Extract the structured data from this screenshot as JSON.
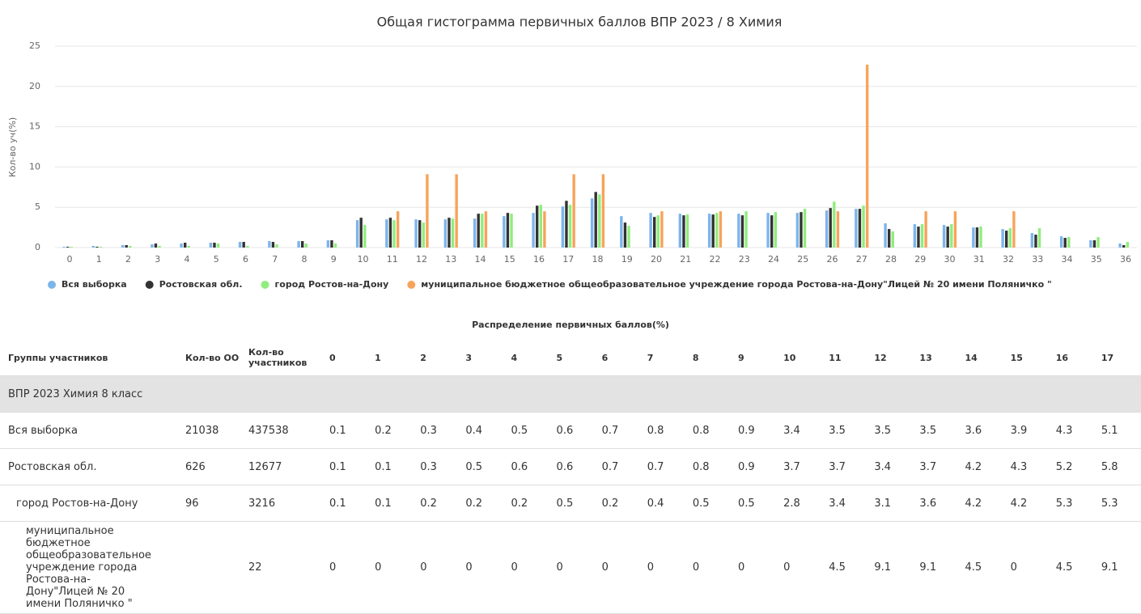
{
  "chart_data": {
    "type": "bar",
    "title": "Общая гистограмма первичных баллов ВПР 2023 / 8 Химия",
    "y_label": "Кол-во уч(%)",
    "categories": [
      0,
      1,
      2,
      3,
      4,
      5,
      6,
      7,
      8,
      9,
      10,
      11,
      12,
      13,
      14,
      15,
      16,
      17,
      18,
      19,
      20,
      21,
      22,
      23,
      24,
      25,
      26,
      27,
      28,
      29,
      30,
      31,
      32,
      33,
      34,
      35,
      36
    ],
    "series": [
      {
        "name": "Вся выборка",
        "color": "#7cb5ec",
        "values": [
          0.1,
          0.2,
          0.3,
          0.4,
          0.5,
          0.6,
          0.7,
          0.8,
          0.8,
          0.9,
          3.4,
          3.5,
          3.5,
          3.5,
          3.6,
          3.9,
          4.3,
          5.1,
          6.1,
          3.9,
          4.3,
          4.2,
          4.2,
          4.2,
          4.3,
          4.3,
          4.6,
          4.8,
          3.0,
          2.9,
          2.8,
          2.5,
          2.3,
          1.8,
          1.4,
          0.9,
          0.5
        ]
      },
      {
        "name": "Ростовская обл.",
        "color": "#333333",
        "values": [
          0.1,
          0.1,
          0.3,
          0.5,
          0.6,
          0.6,
          0.7,
          0.7,
          0.8,
          0.9,
          3.7,
          3.7,
          3.4,
          3.7,
          4.2,
          4.3,
          5.2,
          5.8,
          6.9,
          3.1,
          3.8,
          4.0,
          4.1,
          4.0,
          4.0,
          4.4,
          4.9,
          4.8,
          2.3,
          2.6,
          2.6,
          2.5,
          2.1,
          1.6,
          1.2,
          0.9,
          0.3
        ]
      },
      {
        "name": "город Ростов-на-Дону",
        "color": "#90ed7d",
        "values": [
          0.1,
          0.1,
          0.2,
          0.2,
          0.2,
          0.5,
          0.2,
          0.4,
          0.5,
          0.5,
          2.8,
          3.4,
          3.1,
          3.6,
          4.2,
          4.2,
          5.3,
          5.3,
          6.6,
          2.7,
          4.0,
          4.1,
          4.3,
          4.5,
          4.4,
          4.8,
          5.7,
          5.2,
          2.0,
          2.9,
          2.9,
          2.6,
          2.4,
          2.4,
          1.3,
          1.3,
          0.7
        ]
      },
      {
        "name": "муниципальное бюджетное общеобразовательное учреждение города Ростова-на-Дону\"Лицей № 20 имени Поляничко \"",
        "color": "#f7a35c",
        "values": [
          0,
          0,
          0,
          0,
          0,
          0,
          0,
          0,
          0,
          0,
          0,
          4.5,
          9.1,
          9.1,
          4.5,
          0,
          4.5,
          9.1,
          9.1,
          0,
          4.5,
          0,
          4.5,
          0,
          0,
          0,
          4.5,
          22.7,
          0,
          4.5,
          4.5,
          0,
          4.5,
          0,
          0,
          0,
          0
        ]
      }
    ],
    "ylim": [
      0,
      25
    ],
    "yticks": [
      0,
      5,
      10,
      15,
      20,
      25
    ],
    "grid": true,
    "legend": "bottom"
  },
  "table": {
    "caption": "Распределение первичных баллов(%)",
    "headers": [
      "Группы участников",
      "Кол-во ОО",
      "Кол-во участников"
    ],
    "section": "ВПР 2023 Химия 8 класс",
    "columns": 18,
    "rows": [
      {
        "oo": 21038,
        "participants": 437538
      },
      {
        "oo": 626,
        "participants": 12677
      },
      {
        "oo": 96,
        "participants": 3216
      },
      {
        "participants": 22
      }
    ]
  }
}
